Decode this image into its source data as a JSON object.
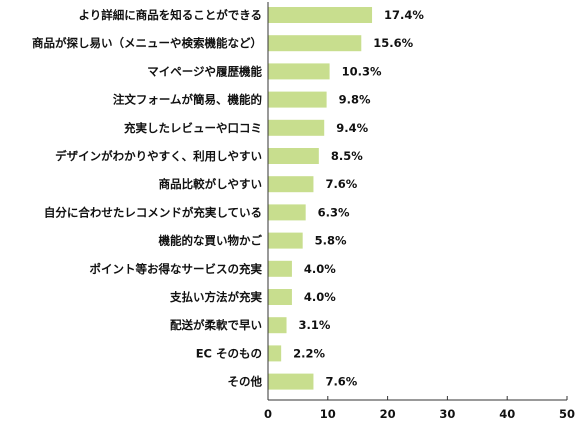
{
  "chart_data": {
    "type": "bar",
    "orientation": "horizontal",
    "categories": [
      "より詳細に商品を知ることができる",
      "商品が探し易い（メニューや検索機能など）",
      "マイページや履歴機能",
      "注文フォームが簡易、機能的",
      "充実したレビューや口コミ",
      "デザインがわかりやすく、利用しやすい",
      "商品比較がしやすい",
      "自分に合わせたレコメンドが充実している",
      "機能的な買い物かご",
      "ポイント等お得なサービスの充実",
      "支払い方法が充実",
      "配送が柔軟で早い",
      "EC そのもの",
      "その他"
    ],
    "values": [
      17.4,
      15.6,
      10.3,
      9.8,
      9.4,
      8.5,
      7.6,
      6.3,
      5.8,
      4.0,
      4.0,
      3.1,
      2.2,
      7.6
    ],
    "value_labels": [
      "17.4%",
      "15.6%",
      "10.3%",
      "9.8%",
      "9.4%",
      "8.5%",
      "7.6%",
      "6.3%",
      "5.8%",
      "4.0%",
      "4.0%",
      "3.1%",
      "2.2%",
      "7.6%"
    ],
    "xlim": [
      0,
      50
    ],
    "xticks": [
      0,
      10,
      20,
      30,
      40,
      50
    ],
    "xtick_labels": [
      "0",
      "10",
      "20",
      "30",
      "40",
      "50"
    ],
    "bar_color": "#c8de8e",
    "axis_color": "#333333",
    "grid": false,
    "legend": "none"
  }
}
